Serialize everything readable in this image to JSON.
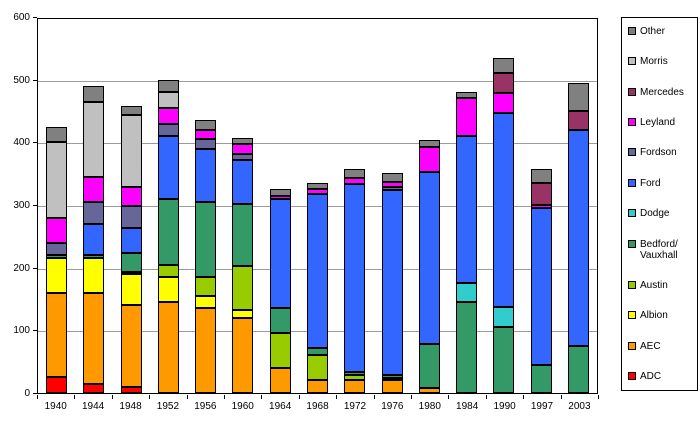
{
  "chart_data": {
    "type": "bar",
    "stacked": true,
    "title": "",
    "xlabel": "",
    "ylabel": "",
    "ylim": [
      0,
      600
    ],
    "yticks": [
      0,
      100,
      200,
      300,
      400,
      500,
      600
    ],
    "grid": true,
    "legend_position": "right",
    "legend_order_top_to_bottom": [
      "Other",
      "Morris",
      "Mercedes",
      "Leyland",
      "Fordson",
      "Ford",
      "Dodge",
      "Bedford/Vauxhall",
      "Austin",
      "Albion",
      "AEC",
      "ADC"
    ],
    "categories": [
      "1940",
      "1944",
      "1948",
      "1952",
      "1956",
      "1960",
      "1964",
      "1968",
      "1972",
      "1976",
      "1980",
      "1984",
      "1990",
      "1997",
      "2003"
    ],
    "series": [
      {
        "name": "ADC",
        "color": "#FF0000",
        "values": [
          25,
          15,
          10,
          0,
          0,
          0,
          0,
          0,
          0,
          0,
          0,
          0,
          0,
          0,
          0
        ]
      },
      {
        "name": "AEC",
        "color": "#FF9900",
        "values": [
          135,
          145,
          130,
          145,
          135,
          120,
          40,
          20,
          20,
          20,
          8,
          0,
          0,
          0,
          0
        ]
      },
      {
        "name": "Albion",
        "color": "#FFFF00",
        "values": [
          55,
          55,
          50,
          40,
          20,
          12,
          0,
          0,
          0,
          0,
          0,
          0,
          0,
          0,
          0
        ]
      },
      {
        "name": "Austin",
        "color": "#99CC00",
        "values": [
          0,
          0,
          2,
          20,
          30,
          70,
          55,
          40,
          8,
          2,
          0,
          0,
          0,
          0,
          0
        ]
      },
      {
        "name": "Bedford/Vauxhall",
        "color": "#339966",
        "legend_label": "Bedford/\nVauxhall",
        "values": [
          5,
          5,
          30,
          105,
          120,
          100,
          40,
          12,
          5,
          5,
          70,
          145,
          105,
          45,
          75
        ]
      },
      {
        "name": "Dodge",
        "color": "#33CCCC",
        "values": [
          0,
          0,
          0,
          0,
          0,
          0,
          0,
          0,
          0,
          0,
          0,
          30,
          32,
          0,
          0
        ]
      },
      {
        "name": "Ford",
        "color": "#3366FF",
        "values": [
          0,
          50,
          40,
          100,
          85,
          70,
          175,
          245,
          300,
          295,
          275,
          235,
          310,
          250,
          345
        ]
      },
      {
        "name": "Fordson",
        "color": "#666699",
        "values": [
          20,
          35,
          35,
          20,
          15,
          10,
          0,
          0,
          0,
          5,
          0,
          0,
          0,
          0,
          0
        ]
      },
      {
        "name": "Leyland",
        "color": "#FF00FF",
        "values": [
          40,
          40,
          30,
          25,
          15,
          15,
          5,
          8,
          10,
          8,
          40,
          60,
          32,
          5,
          0
        ]
      },
      {
        "name": "Mercedes",
        "color": "#993366",
        "values": [
          0,
          0,
          0,
          0,
          0,
          0,
          0,
          0,
          0,
          0,
          0,
          0,
          31,
          35,
          30
        ]
      },
      {
        "name": "Morris",
        "color": "#C0C0C0",
        "values": [
          120,
          120,
          115,
          25,
          0,
          0,
          0,
          0,
          0,
          0,
          0,
          0,
          0,
          0,
          0
        ]
      },
      {
        "name": "Other",
        "color": "#808080",
        "values": [
          25,
          25,
          15,
          20,
          15,
          10,
          10,
          10,
          15,
          15,
          10,
          10,
          25,
          22,
          45
        ]
      }
    ]
  },
  "colors": {
    "gridline": "#9b9b9b",
    "axis": "#000000",
    "plot_background": "#ffffff",
    "segment_border": "#000000"
  }
}
